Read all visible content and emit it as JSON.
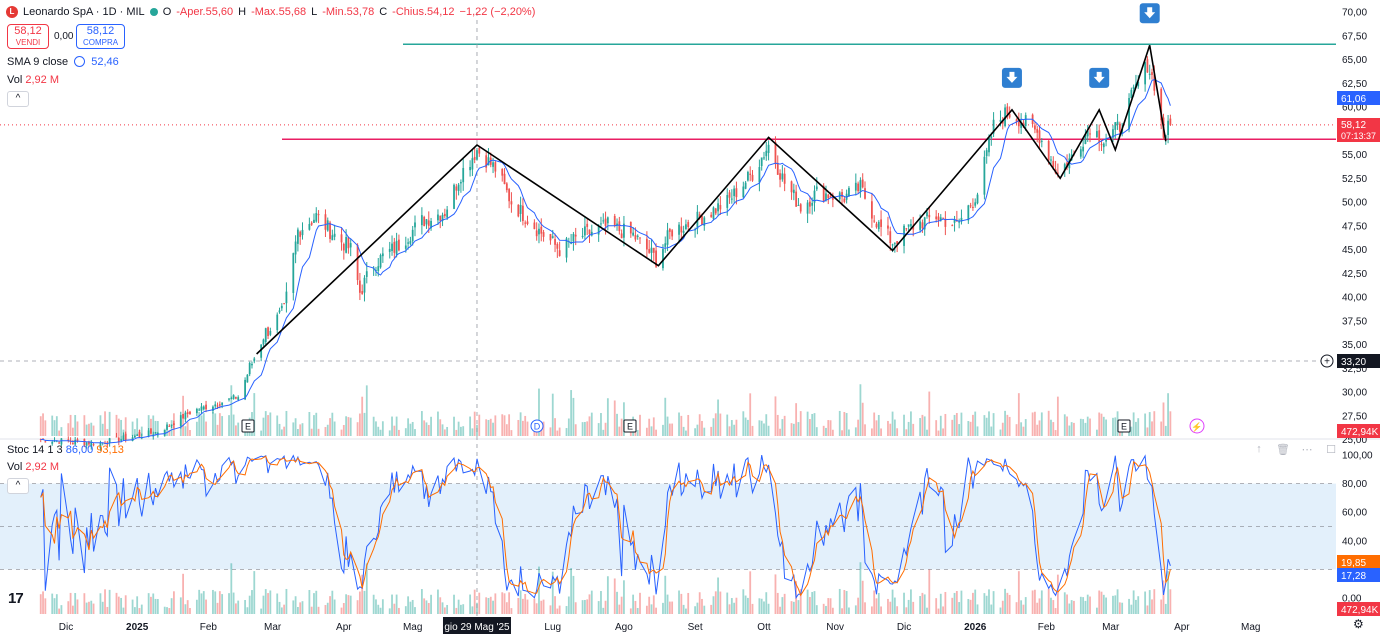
{
  "header": {
    "logo_letter": "L",
    "symbol": "Leonardo SpA · 1D · MIL",
    "o_label": "O",
    "o_value": "-Aper.55,60",
    "h_label": "H",
    "h_value": "-Max.55,68",
    "l_label": "L",
    "l_value": "-Min.53,78",
    "c_label": "C",
    "c_value": "-Chius.54,12",
    "change": "−1,22 (−2,20%)"
  },
  "trade": {
    "sell_price": "58,12",
    "sell_label": "VENDI",
    "spread": "0,00",
    "buy_price": "58,12",
    "buy_label": "COMPRA"
  },
  "legend": {
    "sma_label": "SMA 9 close",
    "sma_value": "52,46",
    "vol_label": "Vol",
    "vol_value": "2,92 M",
    "stoch_label": "Stoc 14 1 3",
    "stoch_k": "86,00",
    "stoch_d": "93,13",
    "vol2_label": "Vol",
    "vol2_value": "2,92 M",
    "collapse": "^"
  },
  "axis": {
    "price_ticks": [
      "70,00",
      "67,50",
      "65,00",
      "62,50",
      "60,00",
      "57,50",
      "55,00",
      "52,50",
      "50,00",
      "47,50",
      "45,00",
      "42,50",
      "40,00",
      "37,50",
      "35,00",
      "32,50",
      "30,00",
      "27,50",
      "25,00"
    ],
    "stoch_ticks": [
      "100,00",
      "80,00",
      "60,00",
      "40,00",
      "20,00",
      "0,00"
    ],
    "x_ticks": [
      "Dic",
      "2025",
      "Feb",
      "Mar",
      "Apr",
      "Mag",
      "Lug",
      "Ago",
      "Set",
      "Ott",
      "Nov",
      "Dic",
      "2026",
      "Feb",
      "Mar",
      "Apr",
      "Mag"
    ],
    "crosshair_date": "gio 29 Mag '25"
  },
  "badges": {
    "sma_value": "61,06",
    "last_price": "58,12",
    "countdown": "07:13:37",
    "crosshair_price": "33,20",
    "volume_value": "472,94K",
    "stoch_d": "19,85",
    "stoch_k": "17,28",
    "volume2_value": "472,94K"
  },
  "events": {
    "earnings": "E",
    "dividend": "D"
  },
  "toolbar": {
    "up": "↑",
    "trash": "🗑",
    "more": "⋯",
    "maximize": "☐",
    "tv_logo": "17",
    "settings": "⚙"
  },
  "colors": {
    "up": "#26a69a",
    "down": "#ef5350",
    "sma": "#2962ff",
    "support": "#e91e63",
    "resistance": "#26a69a",
    "stoch_k": "#2962ff",
    "stoch_d": "#ff6d00",
    "band": "#e3f0fb",
    "arrow": "#2f7fd1"
  },
  "chart_data": {
    "type": "candlestick",
    "title": "Leonardo SpA · 1D · MIL",
    "price_range": [
      24,
      71
    ],
    "horizontal_levels": [
      {
        "name": "resistance",
        "value": 66.6,
        "color": "#26a69a"
      },
      {
        "name": "neckline",
        "value": 56.6,
        "color": "#e91e63"
      },
      {
        "name": "current",
        "value": 58.12,
        "color": "#f23645"
      }
    ],
    "trend_pattern": [
      {
        "date": "2025-02-22",
        "price": 34.0
      },
      {
        "date": "2025-05-29",
        "price": 56.0
      },
      {
        "date": "2025-08-16",
        "price": 43.3
      },
      {
        "date": "2025-10-03",
        "price": 56.8
      },
      {
        "date": "2025-11-26",
        "price": 44.9
      },
      {
        "date": "2026-01-17",
        "price": 59.7
      },
      {
        "date": "2026-02-07",
        "price": 52.5
      },
      {
        "date": "2026-02-24",
        "price": 59.7
      },
      {
        "date": "2026-03-03",
        "price": 55.5
      },
      {
        "date": "2026-03-18",
        "price": 66.5
      },
      {
        "date": "2026-03-25",
        "price": 56.4
      }
    ],
    "signal_arrows": [
      "2026-01-17",
      "2026-02-24",
      "2026-03-18"
    ],
    "anchors": [
      [
        "2024-11-20",
        25.0
      ],
      [
        "2024-12-15",
        24.6
      ],
      [
        "2025-01-10",
        25.8
      ],
      [
        "2025-01-25",
        28.0
      ],
      [
        "2025-02-05",
        28.8
      ],
      [
        "2025-02-14",
        29.5
      ],
      [
        "2025-02-25",
        36.0
      ],
      [
        "2025-03-06",
        38.5
      ],
      [
        "2025-03-12",
        47.0
      ],
      [
        "2025-03-20",
        48.5
      ],
      [
        "2025-03-28",
        46.5
      ],
      [
        "2025-04-04",
        45.0
      ],
      [
        "2025-04-08",
        40.5
      ],
      [
        "2025-04-14",
        43.5
      ],
      [
        "2025-04-25",
        45.5
      ],
      [
        "2025-05-05",
        48.0
      ],
      [
        "2025-05-15",
        49.0
      ],
      [
        "2025-05-22",
        53.0
      ],
      [
        "2025-05-29",
        55.5
      ],
      [
        "2025-06-06",
        53.5
      ],
      [
        "2025-06-13",
        50.0
      ],
      [
        "2025-06-25",
        47.0
      ],
      [
        "2025-07-04",
        45.0
      ],
      [
        "2025-07-14",
        46.5
      ],
      [
        "2025-07-25",
        47.5
      ],
      [
        "2025-08-05",
        46.5
      ],
      [
        "2025-08-15",
        44.0
      ],
      [
        "2025-08-22",
        47.0
      ],
      [
        "2025-09-01",
        48.0
      ],
      [
        "2025-09-15",
        50.0
      ],
      [
        "2025-09-26",
        53.0
      ],
      [
        "2025-10-03",
        56.0
      ],
      [
        "2025-10-10",
        52.0
      ],
      [
        "2025-10-17",
        49.5
      ],
      [
        "2025-10-24",
        51.0
      ],
      [
        "2025-11-05",
        50.5
      ],
      [
        "2025-11-12",
        51.5
      ],
      [
        "2025-11-20",
        47.5
      ],
      [
        "2025-11-26",
        45.8
      ],
      [
        "2025-12-05",
        47.5
      ],
      [
        "2025-12-15",
        48.5
      ],
      [
        "2025-12-24",
        47.5
      ],
      [
        "2026-01-02",
        51.0
      ],
      [
        "2026-01-09",
        58.0
      ],
      [
        "2026-01-15",
        59.5
      ],
      [
        "2026-01-22",
        58.5
      ],
      [
        "2026-01-29",
        57.0
      ],
      [
        "2026-02-06",
        53.0
      ],
      [
        "2026-02-13",
        55.0
      ],
      [
        "2026-02-20",
        58.0
      ],
      [
        "2026-02-26",
        56.5
      ],
      [
        "2026-03-05",
        58.0
      ],
      [
        "2026-03-11",
        61.5
      ],
      [
        "2026-03-17",
        64.5
      ],
      [
        "2026-03-20",
        62.5
      ],
      [
        "2026-03-24",
        57.0
      ],
      [
        "2026-03-27",
        58.12
      ]
    ]
  }
}
